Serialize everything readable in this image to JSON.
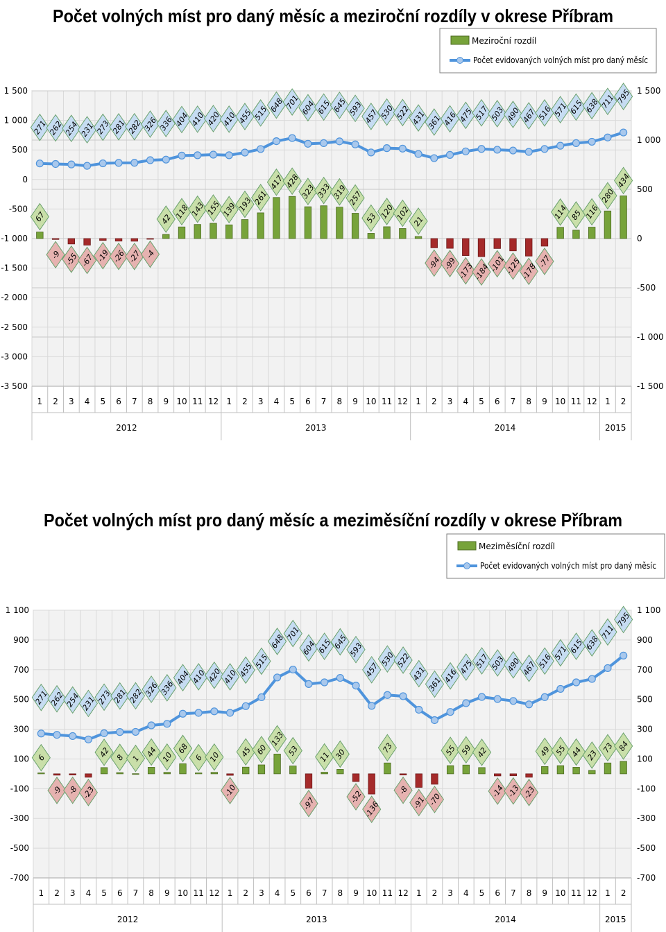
{
  "chart_data": [
    {
      "type": "bar+line",
      "title": "Počet volných míst pro daný měsíc a meziroční rozdíly v okrese Příbram",
      "legend": {
        "position": "top-right",
        "entries": [
          "Meziroční rozdíl",
          "Počet evidovaných volných míst pro daný měsíc"
        ]
      },
      "months": [
        "1",
        "2",
        "3",
        "4",
        "5",
        "6",
        "7",
        "8",
        "9",
        "10",
        "11",
        "12",
        "1",
        "2",
        "3",
        "4",
        "5",
        "6",
        "7",
        "8",
        "9",
        "10",
        "11",
        "12",
        "1",
        "2",
        "3",
        "4",
        "5",
        "6",
        "7",
        "8",
        "9",
        "10",
        "11",
        "12",
        "1",
        "2"
      ],
      "years": [
        {
          "label": "2012",
          "count": 12
        },
        {
          "label": "2013",
          "count": 12
        },
        {
          "label": "2014",
          "count": 12
        },
        {
          "label": "2015",
          "count": 2
        }
      ],
      "left_axis": {
        "ylim": [
          -3500,
          1500
        ],
        "ticks": [
          1500,
          1000,
          500,
          0,
          -500,
          -1000,
          -1500,
          -2000,
          -2500,
          -3000,
          -3500
        ],
        "tick_labels": [
          "1 500",
          "1 000",
          "500",
          "0",
          "-500",
          "-1 000",
          "-1 500",
          "-2 000",
          "-2 500",
          "-3 000",
          "-3 500"
        ]
      },
      "right_axis": {
        "ylim": [
          -1500,
          1500
        ],
        "ticks": [
          1500,
          1000,
          500,
          0,
          -500,
          -1000,
          -1500
        ],
        "tick_labels": [
          "1 500",
          "1 000",
          "500",
          "0",
          "-500",
          "-1 000",
          "-1 500"
        ]
      },
      "bars": {
        "name": "Meziroční rozdíl",
        "axis": "right",
        "values": [
          67,
          -9,
          -55,
          -67,
          -19,
          -26,
          -27,
          -4,
          42,
          118,
          143,
          155,
          139,
          193,
          261,
          417,
          428,
          323,
          333,
          319,
          257,
          53,
          120,
          102,
          21,
          -94,
          -99,
          -173,
          -184,
          -101,
          -125,
          -178,
          -77,
          114,
          85,
          116,
          280,
          434
        ]
      },
      "line": {
        "name": "Počet evidovaných volných míst pro daný měsíc",
        "axis": "left",
        "values": [
          271,
          262,
          254,
          231,
          273,
          281,
          282,
          326,
          336,
          404,
          410,
          420,
          410,
          455,
          515,
          648,
          701,
          604,
          615,
          645,
          593,
          457,
          530,
          522,
          431,
          361,
          416,
          475,
          517,
          503,
          490,
          467,
          516,
          571,
          615,
          638,
          711,
          795
        ]
      }
    },
    {
      "type": "bar+line",
      "title": "Počet volných míst pro daný měsíc a meziměsíční rozdíly v okrese Příbram",
      "legend": {
        "position": "top-right",
        "entries": [
          "Meziměsíční rozdíl",
          "Počet evidovaných volných míst pro daný měsíc"
        ]
      },
      "months": [
        "1",
        "2",
        "3",
        "4",
        "5",
        "6",
        "7",
        "8",
        "9",
        "10",
        "11",
        "12",
        "1",
        "2",
        "3",
        "4",
        "5",
        "6",
        "7",
        "8",
        "9",
        "10",
        "11",
        "12",
        "1",
        "2",
        "3",
        "4",
        "5",
        "6",
        "7",
        "8",
        "9",
        "10",
        "11",
        "12",
        "1",
        "2"
      ],
      "years": [
        {
          "label": "2012",
          "count": 12
        },
        {
          "label": "2013",
          "count": 12
        },
        {
          "label": "2014",
          "count": 12
        },
        {
          "label": "2015",
          "count": 2
        }
      ],
      "left_axis": {
        "ylim": [
          -700,
          1100
        ],
        "ticks": [
          1100,
          900,
          700,
          500,
          300,
          100,
          -100,
          -300,
          -500,
          -700
        ],
        "tick_labels": [
          "1 100",
          "900",
          "700",
          "500",
          "300",
          "100",
          "-100",
          "-300",
          "-500",
          "-700"
        ]
      },
      "right_axis": {
        "ylim": [
          -700,
          1100
        ],
        "ticks": [
          1100,
          900,
          700,
          500,
          300,
          100,
          -100,
          -300,
          -500,
          -700
        ],
        "tick_labels": [
          "1 100",
          "900",
          "700",
          "500",
          "300",
          "100",
          "-100",
          "-300",
          "-500",
          "-700"
        ]
      },
      "bars": {
        "name": "Meziměsíční rozdíl",
        "axis": "left",
        "values": [
          6,
          -9,
          -8,
          -23,
          42,
          8,
          1,
          44,
          10,
          68,
          6,
          10,
          -10,
          45,
          60,
          133,
          53,
          -97,
          11,
          30,
          -52,
          -136,
          73,
          -8,
          -91,
          -70,
          55,
          59,
          42,
          -14,
          -13,
          -23,
          49,
          55,
          44,
          23,
          73,
          84
        ]
      },
      "line": {
        "name": "Počet evidovaných volných míst pro daný měsíc",
        "axis": "left",
        "values": [
          271,
          262,
          254,
          231,
          273,
          281,
          282,
          326,
          336,
          404,
          410,
          420,
          410,
          455,
          515,
          648,
          701,
          604,
          615,
          645,
          593,
          457,
          530,
          522,
          431,
          361,
          416,
          475,
          517,
          503,
          490,
          467,
          516,
          571,
          615,
          638,
          711,
          795
        ]
      }
    }
  ],
  "colors": {
    "bar_positive": "#77a33a",
    "bar_negative": "#a52a2a",
    "line": "#4f94dc",
    "label_blue_fill": "#c6dcf2",
    "label_green_fill": "#c9dfa9",
    "label_red_fill": "#e6b2b0",
    "grid": "#d9d9d9"
  }
}
